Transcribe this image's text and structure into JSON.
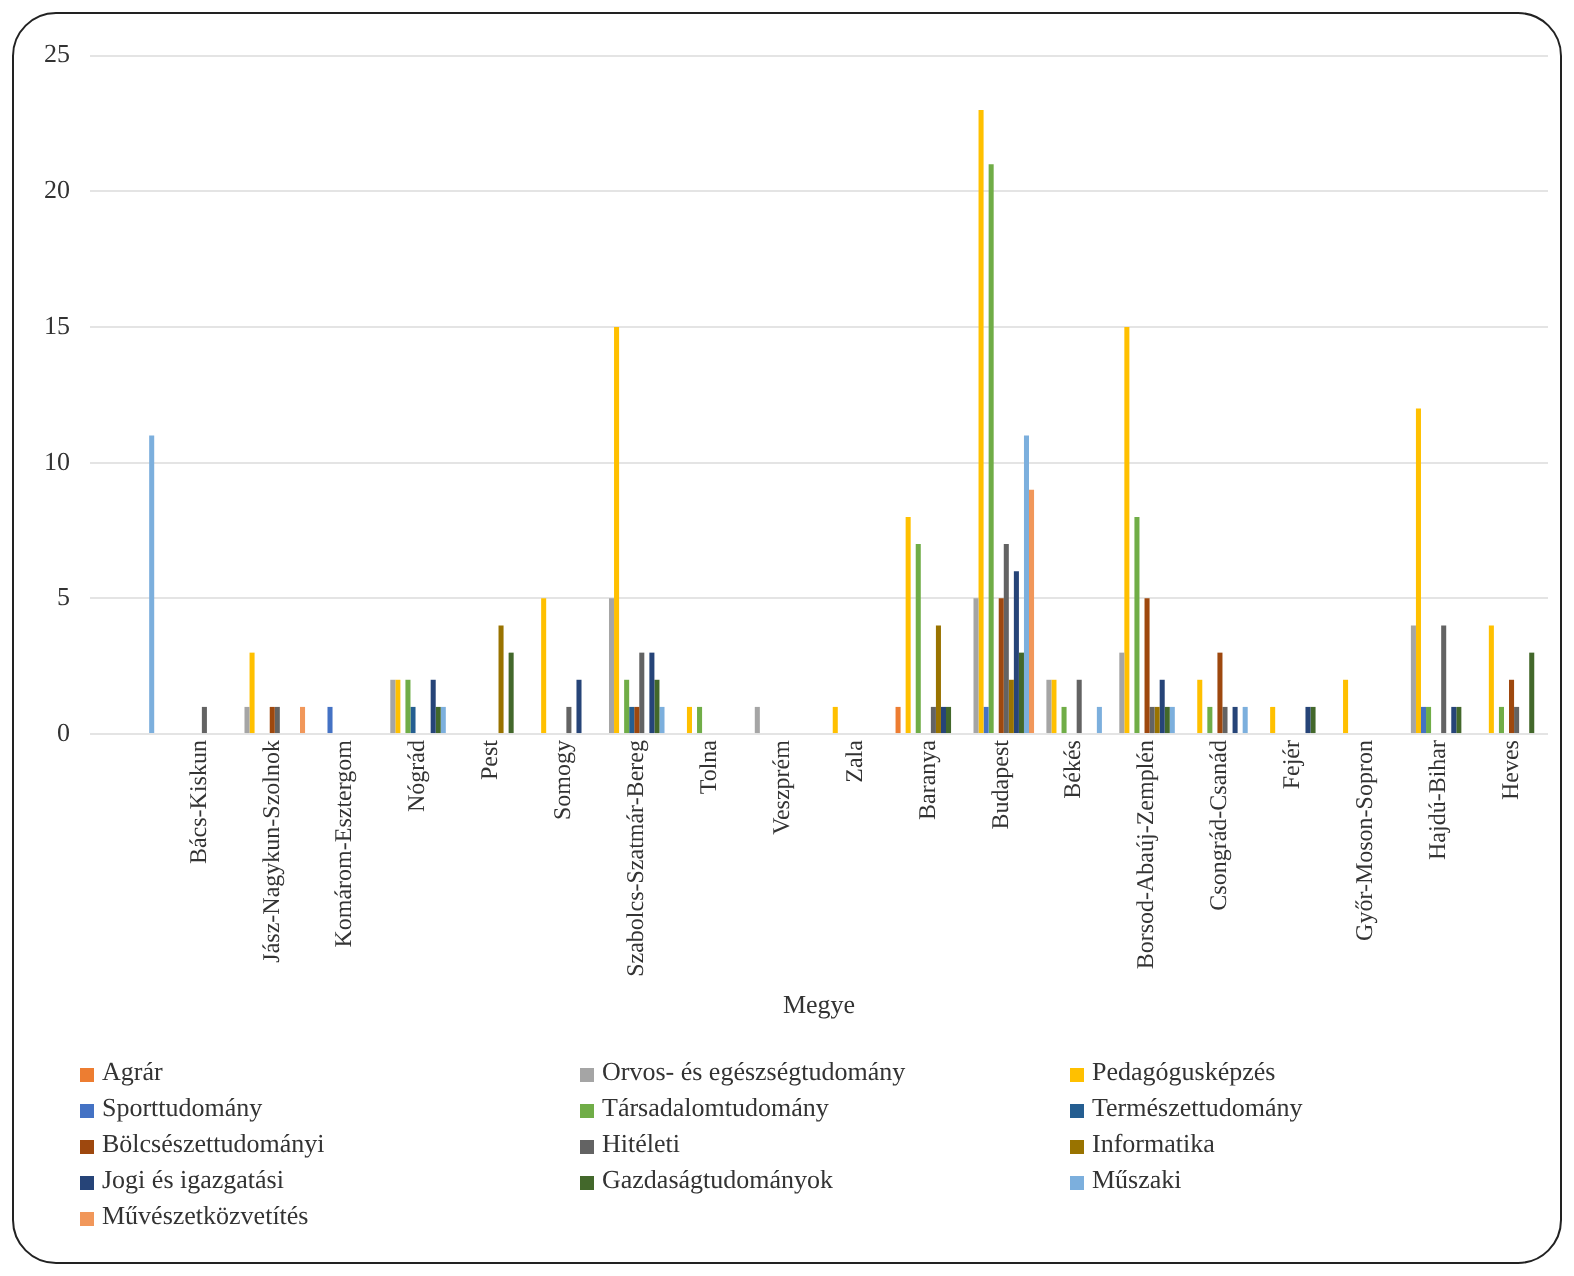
{
  "chart_data": {
    "type": "bar",
    "xlabel": "Megye",
    "categories": [
      null,
      "Bács-Kiskun",
      "Jász-Nagykun-Szolnok",
      "Komárom-Esztergom",
      "Nógrád",
      "Pest",
      "Somogy",
      "Szabolcs-Szatmár-Bereg",
      "Tolna",
      "Veszprém",
      "Zala",
      "Baranya",
      "Budapest",
      "Békés",
      "Borsod-Abaúj-Zemplén",
      "Csongrád-Csanád",
      "Fejér",
      "Győr-Moson-Sopron",
      "Hajdú-Bihar",
      "Heves"
    ],
    "series": [
      {
        "name": "Agrár",
        "color": "#ed7d31",
        "values": [
          0,
          0,
          0,
          0,
          0,
          0,
          0,
          0,
          0,
          0,
          0,
          1,
          0,
          0,
          0,
          0,
          0,
          0,
          0,
          0
        ]
      },
      {
        "name": "Orvos- és egészségtudomány",
        "color": "#a5a5a5",
        "values": [
          0,
          0,
          1,
          0,
          2,
          0,
          0,
          5,
          0,
          1,
          0,
          0,
          5,
          2,
          3,
          0,
          0,
          0,
          4,
          0
        ]
      },
      {
        "name": "Pedagógusképzés",
        "color": "#ffc000",
        "values": [
          0,
          0,
          3,
          0,
          2,
          0,
          5,
          15,
          1,
          0,
          1,
          8,
          23,
          2,
          15,
          2,
          1,
          2,
          12,
          4
        ]
      },
      {
        "name": "Sporttudomány",
        "color": "#4472c4",
        "values": [
          0,
          0,
          0,
          1,
          0,
          0,
          0,
          0,
          0,
          0,
          0,
          0,
          1,
          0,
          0,
          0,
          0,
          0,
          1,
          0
        ]
      },
      {
        "name": "Társadalomtudomány",
        "color": "#70ad47",
        "values": [
          0,
          0,
          0,
          0,
          2,
          0,
          0,
          2,
          1,
          0,
          0,
          7,
          21,
          1,
          8,
          1,
          0,
          0,
          1,
          1
        ]
      },
      {
        "name": "Természettudomány",
        "color": "#255e91",
        "values": [
          0,
          0,
          0,
          0,
          1,
          0,
          0,
          1,
          0,
          0,
          0,
          0,
          0,
          0,
          0,
          0,
          0,
          0,
          0,
          0
        ]
      },
      {
        "name": "Bölcsészettudományi",
        "color": "#9e480e",
        "values": [
          0,
          0,
          1,
          0,
          0,
          0,
          0,
          1,
          0,
          0,
          0,
          0,
          5,
          0,
          5,
          3,
          0,
          0,
          0,
          2
        ]
      },
      {
        "name": "Hitéleti",
        "color": "#636363",
        "values": [
          0,
          1,
          1,
          0,
          0,
          0,
          1,
          3,
          0,
          0,
          0,
          1,
          7,
          2,
          1,
          1,
          0,
          0,
          4,
          1
        ]
      },
      {
        "name": "Informatika",
        "color": "#997300",
        "values": [
          0,
          0,
          0,
          0,
          0,
          4,
          0,
          0,
          0,
          0,
          0,
          4,
          2,
          0,
          1,
          0,
          0,
          0,
          0,
          0
        ]
      },
      {
        "name": "Jogi és igazgatási",
        "color": "#264478",
        "values": [
          0,
          0,
          0,
          0,
          2,
          0,
          2,
          3,
          0,
          0,
          0,
          1,
          6,
          0,
          2,
          1,
          1,
          0,
          1,
          0
        ]
      },
      {
        "name": "Gazdaságtudományok",
        "color": "#43682b",
        "values": [
          0,
          0,
          0,
          0,
          1,
          3,
          0,
          2,
          0,
          0,
          0,
          1,
          3,
          0,
          1,
          0,
          1,
          0,
          1,
          3
        ]
      },
      {
        "name": "Műszaki",
        "color": "#7cafdd",
        "values": [
          11,
          0,
          0,
          0,
          1,
          0,
          0,
          1,
          0,
          0,
          0,
          0,
          11,
          1,
          1,
          1,
          0,
          0,
          0,
          0
        ]
      },
      {
        "name": "Művészetközvetítés",
        "color": "#f1975a",
        "values": [
          0,
          0,
          1,
          0,
          0,
          0,
          0,
          0,
          0,
          0,
          0,
          0,
          9,
          0,
          0,
          0,
          0,
          0,
          0,
          0
        ]
      }
    ],
    "ylim": [
      0,
      25
    ],
    "yticks": [
      0,
      5,
      10,
      15,
      20,
      25
    ],
    "grid": "y",
    "legend": "bottom"
  }
}
